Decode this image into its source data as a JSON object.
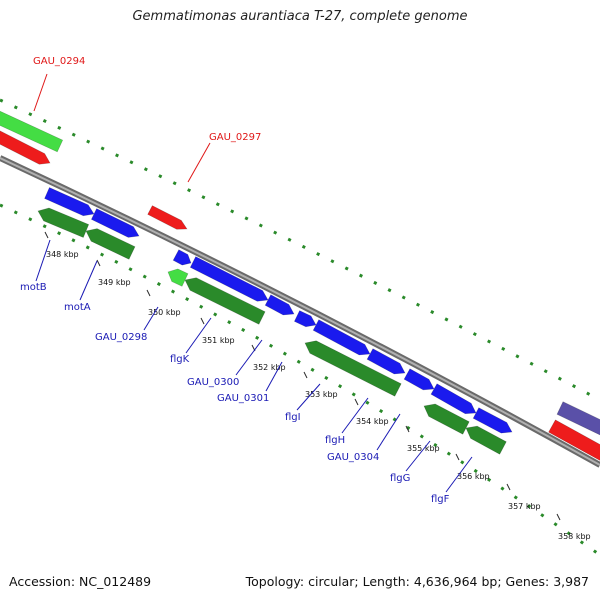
{
  "title": "Gemmatimonas aurantiaca T-27, complete genome",
  "footer": {
    "accession": "Accession: NC_012489",
    "topology": "Topology: circular; Length: 4,636,964 bp; Genes: 3,987"
  },
  "colors": {
    "backbone": "#8a8a8a",
    "forward_cds": "#1a1aee",
    "reverse_cds": "#2a8a2a",
    "rna_red": "#ee1c1c",
    "rna_green": "#44dd44",
    "other": "#5a50a8",
    "label_blue": "#1a1ab4",
    "label_red": "#e01818",
    "gc_dots": "#2a8a2a"
  },
  "ticks": [
    {
      "label": "348 kbp"
    },
    {
      "label": "349 kbp"
    },
    {
      "label": "350 kbp"
    },
    {
      "label": "351 kbp"
    },
    {
      "label": "352 kbp"
    },
    {
      "label": "353 kbp"
    },
    {
      "label": "354 kbp"
    },
    {
      "label": "355 kbp"
    },
    {
      "label": "356 kbp"
    },
    {
      "label": "357 kbp"
    },
    {
      "label": "358 kbp"
    }
  ],
  "gene_labels": [
    {
      "name": "GAU_0294",
      "color": "red"
    },
    {
      "name": "GAU_0297",
      "color": "red"
    },
    {
      "name": "motB",
      "color": "blue"
    },
    {
      "name": "motA",
      "color": "blue"
    },
    {
      "name": "GAU_0298",
      "color": "blue"
    },
    {
      "name": "flgK",
      "color": "blue"
    },
    {
      "name": "GAU_0300",
      "color": "blue"
    },
    {
      "name": "GAU_0301",
      "color": "blue"
    },
    {
      "name": "flgI",
      "color": "blue"
    },
    {
      "name": "flgH",
      "color": "blue"
    },
    {
      "name": "GAU_0304",
      "color": "blue"
    },
    {
      "name": "flgG",
      "color": "blue"
    },
    {
      "name": "flgF",
      "color": "blue"
    }
  ]
}
